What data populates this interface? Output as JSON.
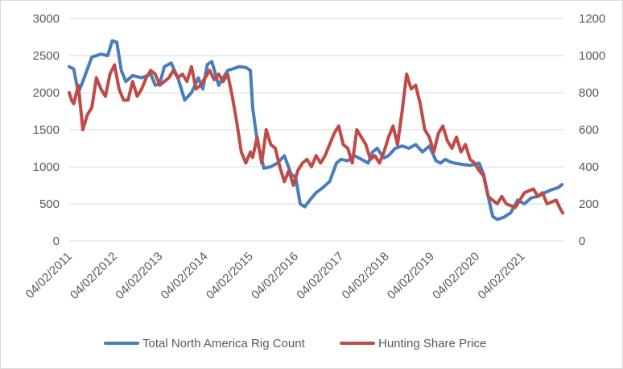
{
  "chart_data": {
    "type": "line",
    "title": "",
    "xlabel": "",
    "ylabel": "",
    "x_tick_labels": [
      "04/02/2011",
      "04/02/2012",
      "04/02/2013",
      "04/02/2014",
      "04/02/2015",
      "04/02/2016",
      "04/02/2017",
      "04/02/2018",
      "04/02/2019",
      "04/02/2020",
      "04/02/2021"
    ],
    "y_left_ticks": [
      "0",
      "500",
      "1000",
      "1500",
      "2000",
      "2500",
      "3000"
    ],
    "y_right_ticks": [
      "0",
      "200",
      "400",
      "600",
      "800",
      "1000",
      "1200"
    ],
    "y_left_lim": [
      0,
      3000
    ],
    "y_right_lim": [
      0,
      1200
    ],
    "grid": "horizontal",
    "legend_position": "bottom",
    "series": [
      {
        "name": "Total North America Rig Count",
        "axis": "left",
        "color": "#4a7ebb",
        "x": [
          2011.0,
          2011.1,
          2011.2,
          2011.3,
          2011.5,
          2011.7,
          2011.85,
          2011.95,
          2012.05,
          2012.15,
          2012.25,
          2012.4,
          2012.6,
          2012.8,
          2012.9,
          2013.0,
          2013.1,
          2013.25,
          2013.4,
          2013.55,
          2013.7,
          2013.85,
          2013.95,
          2014.05,
          2014.15,
          2014.3,
          2014.4,
          2014.5,
          2014.6,
          2014.75,
          2014.9,
          2015.0,
          2015.05,
          2015.15,
          2015.3,
          2015.45,
          2015.6,
          2015.75,
          2015.9,
          2016.0,
          2016.1,
          2016.2,
          2016.3,
          2016.45,
          2016.6,
          2016.75,
          2016.9,
          2017.0,
          2017.15,
          2017.3,
          2017.45,
          2017.6,
          2017.7,
          2017.8,
          2017.9,
          2017.95,
          2018.05,
          2018.2,
          2018.35,
          2018.5,
          2018.65,
          2018.8,
          2018.95,
          2019.1,
          2019.2,
          2019.3,
          2019.4,
          2019.5,
          2019.7,
          2019.85,
          2019.95,
          2020.05,
          2020.15,
          2020.25,
          2020.35,
          2020.45,
          2020.6,
          2020.75,
          2020.9,
          2021.05,
          2021.2,
          2021.35,
          2021.5,
          2021.65,
          2021.8,
          2021.88
        ],
        "y": [
          2350,
          2320,
          2000,
          2150,
          2480,
          2520,
          2500,
          2700,
          2680,
          2300,
          2150,
          2230,
          2200,
          2250,
          2100,
          2120,
          2350,
          2400,
          2200,
          1900,
          2000,
          2200,
          2050,
          2380,
          2420,
          2100,
          2200,
          2300,
          2320,
          2350,
          2340,
          2300,
          1800,
          1350,
          980,
          1000,
          1050,
          1150,
          900,
          860,
          500,
          460,
          540,
          650,
          720,
          800,
          1050,
          1100,
          1080,
          1150,
          1100,
          1050,
          1200,
          1250,
          1160,
          1120,
          1150,
          1250,
          1280,
          1250,
          1300,
          1200,
          1280,
          1080,
          1050,
          1100,
          1070,
          1050,
          1030,
          1020,
          1030,
          1050,
          900,
          600,
          330,
          290,
          320,
          380,
          550,
          500,
          580,
          600,
          650,
          690,
          720,
          760
        ]
      },
      {
        "name": "Hunting Share Price",
        "axis": "right",
        "color": "#be4b48",
        "x": [
          2011.0,
          2011.05,
          2011.1,
          2011.2,
          2011.3,
          2011.4,
          2011.5,
          2011.6,
          2011.7,
          2011.8,
          2011.9,
          2012.0,
          2012.1,
          2012.2,
          2012.3,
          2012.4,
          2012.5,
          2012.6,
          2012.7,
          2012.8,
          2012.9,
          2013.0,
          2013.1,
          2013.2,
          2013.3,
          2013.4,
          2013.5,
          2013.6,
          2013.7,
          2013.8,
          2013.9,
          2014.0,
          2014.1,
          2014.2,
          2014.3,
          2014.4,
          2014.5,
          2014.6,
          2014.7,
          2014.8,
          2014.9,
          2015.0,
          2015.05,
          2015.15,
          2015.25,
          2015.35,
          2015.45,
          2015.55,
          2015.65,
          2015.75,
          2015.85,
          2015.95,
          2016.05,
          2016.15,
          2016.25,
          2016.35,
          2016.45,
          2016.55,
          2016.65,
          2016.75,
          2016.85,
          2016.95,
          2017.05,
          2017.15,
          2017.25,
          2017.35,
          2017.45,
          2017.55,
          2017.65,
          2017.75,
          2017.85,
          2017.95,
          2018.05,
          2018.15,
          2018.25,
          2018.35,
          2018.45,
          2018.55,
          2018.65,
          2018.75,
          2018.85,
          2018.95,
          2019.05,
          2019.15,
          2019.25,
          2019.35,
          2019.45,
          2019.55,
          2019.65,
          2019.75,
          2019.85,
          2019.95,
          2020.05,
          2020.15,
          2020.25,
          2020.35,
          2020.45,
          2020.55,
          2020.65,
          2020.75,
          2020.85,
          2020.95,
          2021.05,
          2021.15,
          2021.25,
          2021.35,
          2021.45,
          2021.55,
          2021.65,
          2021.75,
          2021.85,
          2021.9
        ],
        "y": [
          800,
          760,
          740,
          840,
          600,
          680,
          720,
          880,
          820,
          780,
          900,
          950,
          820,
          760,
          760,
          860,
          780,
          820,
          880,
          920,
          900,
          840,
          860,
          880,
          920,
          880,
          900,
          860,
          940,
          820,
          840,
          880,
          920,
          870,
          900,
          860,
          900,
          780,
          640,
          480,
          420,
          480,
          450,
          560,
          420,
          600,
          520,
          500,
          400,
          320,
          380,
          300,
          380,
          420,
          440,
          400,
          460,
          420,
          460,
          520,
          580,
          620,
          520,
          500,
          420,
          600,
          560,
          520,
          440,
          460,
          420,
          480,
          560,
          620,
          520,
          700,
          900,
          820,
          840,
          740,
          600,
          560,
          480,
          580,
          620,
          540,
          500,
          560,
          480,
          520,
          440,
          420,
          380,
          350,
          240,
          220,
          200,
          240,
          200,
          190,
          180,
          220,
          260,
          270,
          280,
          240,
          260,
          200,
          210,
          220,
          170,
          150
        ]
      }
    ]
  }
}
